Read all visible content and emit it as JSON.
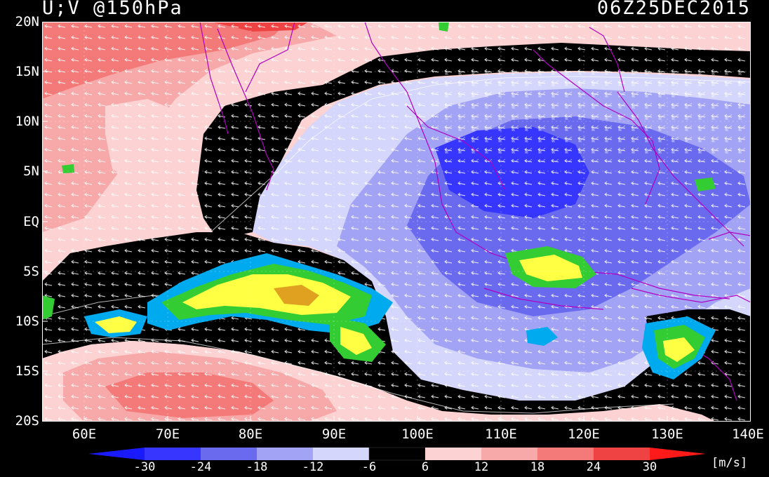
{
  "title": {
    "left": "U;V @150hPa",
    "right": "06Z25DEC2015"
  },
  "axes": {
    "lat_labels": [
      "20N",
      "15N",
      "10N",
      "5N",
      "EQ",
      "5S",
      "10S",
      "15S",
      "20S"
    ],
    "lon_labels": [
      "60E",
      "70E",
      "80E",
      "90E",
      "100E",
      "110E",
      "120E",
      "130E",
      "140E"
    ],
    "lon_range": [
      55,
      140
    ],
    "lat_range": [
      -20,
      20
    ]
  },
  "colorbar": {
    "labels": [
      "-30",
      "-24",
      "-18",
      "-12",
      "-6",
      "6",
      "12",
      "18",
      "24",
      "30"
    ],
    "units": "[m/s]",
    "colors": {
      "below_-30": "#1a1aff",
      "-30_-24": "#3636ff",
      "-24_-18": "#6a6aef",
      "-18_-12": "#a3a3f5",
      "-12_-6": "#d4d6fb",
      "-6_6": "#000000",
      "6_12": "#fcd2d2",
      "12_18": "#f7a8a8",
      "18_24": "#f47a7a",
      "24_30": "#ef4242",
      "above_30": "#ff1a1a"
    }
  },
  "map": {
    "variable": "zonal wind with U;V vectors",
    "level": "150hPa",
    "vector_color": "#ffffff",
    "coastline_color": "#b000c0",
    "convection_colors": [
      "#ffff44",
      "#e0a020",
      "#33cc33",
      "#00aaee",
      "#0033dd"
    ]
  }
}
